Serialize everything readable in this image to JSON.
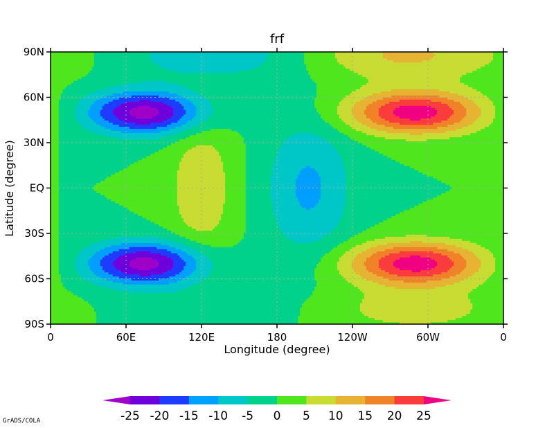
{
  "chart_data": {
    "type": "heatmap",
    "title": "frf",
    "xlabel": "Longitude (degree)",
    "ylabel": "Latitude (degree)",
    "x_ticks": [
      "0",
      "60E",
      "120E",
      "180",
      "120W",
      "60W",
      "0"
    ],
    "y_ticks": [
      "90N",
      "60N",
      "30N",
      "EQ",
      "30S",
      "60S",
      "90S"
    ],
    "x_range_deg": [
      0,
      360
    ],
    "y_range_deg": [
      -90,
      90
    ],
    "grid": true,
    "field_notes": "Two negative cores near 75E at 50N/50S (about -25); two positive cores near 70W at 50N/50S (about +25); weak positive band 100E-150E near equator; weak negative band 170E-150W near equator.",
    "features": [
      {
        "lon": 75,
        "lat": 50,
        "amp": -27,
        "sx": 33,
        "sy": 10
      },
      {
        "lon": 75,
        "lat": -50,
        "amp": -27,
        "sx": 33,
        "sy": 10
      },
      {
        "lon": 290,
        "lat": 50,
        "amp": 28,
        "sx": 37,
        "sy": 10
      },
      {
        "lon": 290,
        "lat": -50,
        "amp": 28,
        "sx": 37,
        "sy": 10
      },
      {
        "lon": 120,
        "lat": 0,
        "amp": 9,
        "sx": 18,
        "sy": 32
      },
      {
        "lon": 205,
        "lat": 0,
        "amp": -11,
        "sx": 24,
        "sy": 32
      },
      {
        "lon": 135,
        "lat": 88,
        "amp": -9,
        "sx": 55,
        "sy": 12
      },
      {
        "lon": 280,
        "lat": 88,
        "amp": 11,
        "sx": 60,
        "sy": 12
      },
      {
        "lon": 120,
        "lat": -80,
        "amp": -4,
        "sx": 40,
        "sy": 10
      },
      {
        "lon": 290,
        "lat": -80,
        "amp": 8,
        "sx": 45,
        "sy": 10
      }
    ],
    "levels": [
      -25,
      -20,
      -15,
      -10,
      -5,
      0,
      5,
      10,
      15,
      20,
      25
    ],
    "colorbar": {
      "labels": [
        "-25",
        "-20",
        "-15",
        "-10",
        "-5",
        "0",
        "5",
        "10",
        "15",
        "20",
        "25"
      ],
      "colors": [
        "#a000c8",
        "#6e00dc",
        "#1e3cff",
        "#00a0ff",
        "#00c8c8",
        "#00d28c",
        "#50e61e",
        "#c8dc32",
        "#e6b432",
        "#f08228",
        "#fa3c3c",
        "#f00082"
      ]
    }
  },
  "footer": "GrADS/COLA"
}
